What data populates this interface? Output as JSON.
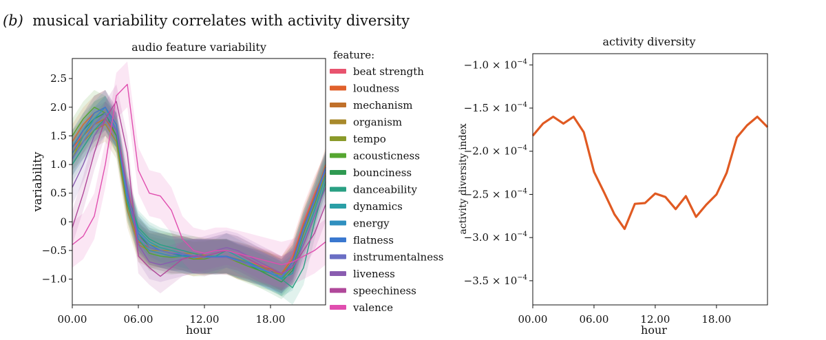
{
  "panel": {
    "label": "(b)",
    "caption": "musical variability correlates with activity diversity"
  },
  "chart_data": [
    {
      "type": "line",
      "title": "audio feature variability",
      "xlabel": "hour",
      "ylabel": "variability",
      "xlim": [
        0,
        23
      ],
      "ylim": [
        -1.45,
        2.85
      ],
      "xticks": [
        {
          "v": 0,
          "label": "00.00"
        },
        {
          "v": 6,
          "label": "06.00"
        },
        {
          "v": 12,
          "label": "12.00"
        },
        {
          "v": 18,
          "label": "18.00"
        }
      ],
      "yticks": [
        {
          "v": -1.0,
          "label": "−1.0"
        },
        {
          "v": -0.5,
          "label": "−0.5"
        },
        {
          "v": 0,
          "label": "0"
        },
        {
          "v": 0.5,
          "label": "0.5"
        },
        {
          "v": 1.0,
          "label": "1.0"
        },
        {
          "v": 1.5,
          "label": "1.5"
        },
        {
          "v": 2.0,
          "label": "2.0"
        },
        {
          "v": 2.5,
          "label": "2.5"
        }
      ],
      "legend_title": "feature:",
      "legend_position": "right, outside",
      "grid": false,
      "x": [
        0,
        1,
        2,
        3,
        4,
        5,
        6,
        7,
        8,
        9,
        10,
        11,
        12,
        13,
        14,
        15,
        16,
        17,
        18,
        19,
        20,
        21,
        22,
        23
      ],
      "series": [
        {
          "name": "beat strength",
          "color": "#e8536e",
          "band": 0.3,
          "values": [
            1.2,
            1.6,
            1.9,
            2.0,
            1.7,
            0.6,
            -0.2,
            -0.45,
            -0.5,
            -0.55,
            -0.55,
            -0.6,
            -0.6,
            -0.62,
            -0.62,
            -0.65,
            -0.7,
            -0.75,
            -0.8,
            -0.9,
            -0.6,
            0.0,
            0.5,
            0.9
          ]
        },
        {
          "name": "loudness",
          "color": "#e0602b",
          "band": 0.3,
          "values": [
            1.4,
            1.7,
            1.9,
            2.0,
            1.6,
            0.4,
            -0.3,
            -0.5,
            -0.55,
            -0.6,
            -0.6,
            -0.65,
            -0.62,
            -0.6,
            -0.6,
            -0.7,
            -0.75,
            -0.8,
            -0.85,
            -0.95,
            -0.7,
            -0.1,
            0.4,
            1.0
          ]
        },
        {
          "name": "mechanism",
          "color": "#c0702a",
          "band": 0.3,
          "values": [
            1.3,
            1.5,
            1.7,
            1.8,
            1.5,
            0.3,
            -0.35,
            -0.45,
            -0.5,
            -0.55,
            -0.55,
            -0.6,
            -0.6,
            -0.6,
            -0.6,
            -0.68,
            -0.72,
            -0.78,
            -0.82,
            -0.9,
            -0.65,
            -0.05,
            0.45,
            0.95
          ]
        },
        {
          "name": "organism",
          "color": "#a8892b",
          "band": 0.3,
          "values": [
            1.2,
            1.4,
            1.6,
            1.7,
            1.4,
            0.2,
            -0.4,
            -0.5,
            -0.5,
            -0.5,
            -0.55,
            -0.55,
            -0.58,
            -0.6,
            -0.62,
            -0.7,
            -0.75,
            -0.8,
            -0.85,
            -0.95,
            -0.75,
            -0.2,
            0.3,
            0.85
          ]
        },
        {
          "name": "tempo",
          "color": "#8a9a2a",
          "band": 0.3,
          "values": [
            1.1,
            1.5,
            1.8,
            1.9,
            1.6,
            0.5,
            -0.25,
            -0.4,
            -0.45,
            -0.5,
            -0.55,
            -0.6,
            -0.62,
            -0.62,
            -0.6,
            -0.65,
            -0.7,
            -0.78,
            -0.85,
            -0.92,
            -0.7,
            -0.1,
            0.4,
            0.9
          ]
        },
        {
          "name": "acousticness",
          "color": "#55a630",
          "band": 0.3,
          "values": [
            1.5,
            1.8,
            2.0,
            1.9,
            1.5,
            0.3,
            -0.3,
            -0.55,
            -0.6,
            -0.62,
            -0.6,
            -0.65,
            -0.65,
            -0.6,
            -0.6,
            -0.7,
            -0.78,
            -0.85,
            -0.9,
            -1.0,
            -0.8,
            -0.2,
            0.3,
            0.9
          ]
        },
        {
          "name": "bounciness",
          "color": "#2f9a52",
          "band": 0.3,
          "values": [
            1.3,
            1.6,
            1.8,
            1.9,
            1.5,
            0.4,
            -0.2,
            -0.45,
            -0.5,
            -0.55,
            -0.6,
            -0.6,
            -0.62,
            -0.6,
            -0.6,
            -0.68,
            -0.75,
            -0.85,
            -0.95,
            -1.05,
            -0.85,
            -0.3,
            0.2,
            0.8
          ]
        },
        {
          "name": "danceability",
          "color": "#2aa083",
          "band": 0.3,
          "values": [
            1.0,
            1.3,
            1.6,
            1.8,
            1.6,
            0.5,
            -0.1,
            -0.3,
            -0.4,
            -0.45,
            -0.5,
            -0.55,
            -0.6,
            -0.6,
            -0.5,
            -0.55,
            -0.65,
            -0.75,
            -0.85,
            -1.0,
            -1.15,
            -0.8,
            0.0,
            0.7
          ]
        },
        {
          "name": "dynamics",
          "color": "#2a9fa6",
          "band": 0.3,
          "values": [
            1.1,
            1.4,
            1.7,
            1.9,
            1.6,
            0.45,
            -0.15,
            -0.35,
            -0.45,
            -0.5,
            -0.55,
            -0.6,
            -0.6,
            -0.55,
            -0.5,
            -0.6,
            -0.7,
            -0.8,
            -0.9,
            -1.0,
            -0.9,
            -0.3,
            0.2,
            0.8
          ]
        },
        {
          "name": "energy",
          "color": "#2f8fbf",
          "band": 0.3,
          "values": [
            1.2,
            1.5,
            1.8,
            2.0,
            1.6,
            0.35,
            -0.3,
            -0.5,
            -0.55,
            -0.6,
            -0.6,
            -0.62,
            -0.6,
            -0.6,
            -0.6,
            -0.68,
            -0.75,
            -0.82,
            -0.9,
            -0.98,
            -0.75,
            -0.15,
            0.35,
            0.95
          ]
        },
        {
          "name": "flatness",
          "color": "#3a78cf",
          "band": 0.3,
          "values": [
            1.3,
            1.6,
            1.9,
            2.0,
            1.7,
            0.5,
            -0.2,
            -0.4,
            -0.5,
            -0.55,
            -0.58,
            -0.6,
            -0.6,
            -0.62,
            -0.6,
            -0.66,
            -0.72,
            -0.8,
            -0.88,
            -0.95,
            -0.7,
            -0.1,
            0.4,
            0.95
          ]
        },
        {
          "name": "instrumentalness",
          "color": "#6a6ec4",
          "band": 0.3,
          "values": [
            1.1,
            1.4,
            1.7,
            1.9,
            1.6,
            0.45,
            -0.25,
            -0.45,
            -0.5,
            -0.55,
            -0.55,
            -0.6,
            -0.62,
            -0.62,
            -0.62,
            -0.68,
            -0.75,
            -0.8,
            -0.88,
            -0.95,
            -0.75,
            -0.15,
            0.35,
            0.9
          ]
        },
        {
          "name": "liveness",
          "color": "#8a5cb0",
          "band": 0.3,
          "values": [
            0.6,
            1.0,
            1.5,
            1.8,
            1.6,
            0.6,
            -0.4,
            -0.7,
            -0.75,
            -0.7,
            -0.65,
            -0.6,
            -0.55,
            -0.5,
            -0.45,
            -0.5,
            -0.6,
            -0.7,
            -0.8,
            -0.9,
            -0.8,
            -0.4,
            0.1,
            0.6
          ]
        },
        {
          "name": "speechiness",
          "color": "#b0489a",
          "band": 0.3,
          "values": [
            -0.1,
            0.5,
            1.2,
            1.8,
            2.1,
            1.2,
            -0.6,
            -0.8,
            -0.95,
            -0.8,
            -0.65,
            -0.6,
            -0.6,
            -0.55,
            -0.5,
            -0.55,
            -0.65,
            -0.75,
            -0.85,
            -0.9,
            -0.8,
            -0.5,
            -0.2,
            0.3
          ]
        },
        {
          "name": "valence",
          "color": "#e04eaf",
          "band": 0.4,
          "values": [
            -0.4,
            -0.25,
            0.1,
            1.0,
            2.2,
            2.4,
            0.9,
            0.5,
            0.45,
            0.2,
            -0.3,
            -0.5,
            -0.55,
            -0.5,
            -0.5,
            -0.55,
            -0.6,
            -0.65,
            -0.7,
            -0.75,
            -0.7,
            -0.6,
            -0.5,
            -0.35
          ]
        }
      ]
    },
    {
      "type": "line",
      "title": "activity diversity",
      "xlabel": "hour",
      "ylabel": "activity diversity index",
      "xlim": [
        0,
        23
      ],
      "ylim": [
        -0.000378,
        -8.7e-05
      ],
      "xticks": [
        {
          "v": 0,
          "label": "00.00"
        },
        {
          "v": 6,
          "label": "06.00"
        },
        {
          "v": 12,
          "label": "12.00"
        },
        {
          "v": 18,
          "label": "18.00"
        }
      ],
      "yticks": [
        {
          "v": -0.0001,
          "mant": "−1.0"
        },
        {
          "v": -0.00015,
          "mant": "−1.5"
        },
        {
          "v": -0.0002,
          "mant": "−2.0"
        },
        {
          "v": -0.00025,
          "mant": "−2.5"
        },
        {
          "v": -0.0003,
          "mant": "−3.0"
        },
        {
          "v": -0.00035,
          "mant": "−3.5"
        }
      ],
      "ytick_suffix": " × 10",
      "ytick_exponent": "−4",
      "grid": false,
      "x": [
        0,
        1,
        2,
        3,
        4,
        5,
        6,
        7,
        8,
        9,
        10,
        11,
        12,
        13,
        14,
        15,
        16,
        17,
        18,
        19,
        20,
        21,
        22,
        23
      ],
      "series": [
        {
          "color": "#e05a22",
          "values": [
            -0.000182,
            -0.000168,
            -0.00016,
            -0.000168,
            -0.00016,
            -0.000178,
            -0.000224,
            -0.000248,
            -0.000273,
            -0.00029,
            -0.000261,
            -0.00026,
            -0.000249,
            -0.000253,
            -0.000267,
            -0.000252,
            -0.000276,
            -0.000262,
            -0.00025,
            -0.000225,
            -0.000184,
            -0.00017,
            -0.00016,
            -0.000172
          ]
        }
      ]
    }
  ]
}
